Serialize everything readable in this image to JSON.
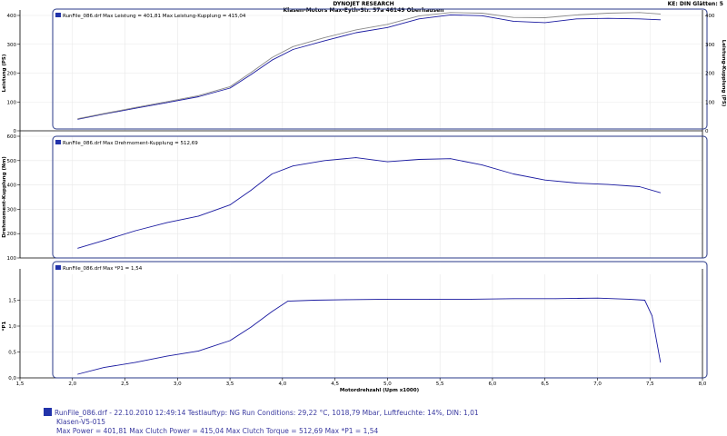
{
  "header": {
    "title": "DYNOJET RESEARCH",
    "subtitle": "Klasen-Motors  Max-Eyth-Str. 57a  46149 Oberhausen",
    "right": "KE: DIN  Glätten: 5"
  },
  "colors": {
    "series_blue": "#1a1aa0",
    "series_gray": "#8a8a8a",
    "frame_blue": "#2a3a8a",
    "grid": "#e8e8e8"
  },
  "chart_data": [
    {
      "type": "line",
      "ylabel": "Leistung (PS)",
      "ylabel_right": "Leistung-Kupplung (PS)",
      "xlim": [
        1.5,
        8.0
      ],
      "ylim": [
        0,
        400
      ],
      "yticks": [
        0,
        100,
        200,
        300,
        400
      ],
      "y_top_label": "",
      "legend": "RunFile_086.drf Max Leistung = 401,81     Max Leistung-Kupplung = 415,04",
      "series": [
        {
          "color": "#1a1aa0",
          "x": [
            2.05,
            2.3,
            2.6,
            2.9,
            3.2,
            3.5,
            3.7,
            3.9,
            4.1,
            4.4,
            4.7,
            5.0,
            5.3,
            5.6,
            5.9,
            6.2,
            6.5,
            6.8,
            7.1,
            7.4,
            7.6
          ],
          "y": [
            40,
            58,
            78,
            98,
            118,
            148,
            195,
            245,
            282,
            312,
            340,
            358,
            388,
            402,
            399,
            380,
            375,
            388,
            390,
            388,
            385
          ]
        },
        {
          "color": "#8a8a8a",
          "x": [
            2.05,
            2.3,
            2.6,
            2.9,
            3.2,
            3.5,
            3.7,
            3.9,
            4.1,
            4.4,
            4.7,
            5.0,
            5.3,
            5.6,
            5.9,
            6.2,
            6.5,
            6.8,
            7.1,
            7.4,
            7.6
          ],
          "y": [
            42,
            60,
            81,
            101,
            122,
            153,
            202,
            254,
            292,
            323,
            350,
            369,
            398,
            410,
            408,
            393,
            392,
            402,
            408,
            410,
            405
          ]
        }
      ]
    },
    {
      "type": "line",
      "ylabel": "Drehmoment-Kupplung (Nm)",
      "xlim": [
        1.5,
        8.0
      ],
      "ylim": [
        100,
        600
      ],
      "yticks": [
        100,
        200,
        300,
        400,
        500,
        600
      ],
      "legend": "RunFile_086.drf Max Drehmoment-Kupplung = 512,69",
      "series": [
        {
          "color": "#1a1aa0",
          "x": [
            2.05,
            2.3,
            2.6,
            2.9,
            3.2,
            3.5,
            3.7,
            3.9,
            4.1,
            4.4,
            4.7,
            5.0,
            5.3,
            5.6,
            5.9,
            6.2,
            6.5,
            6.8,
            7.1,
            7.4,
            7.6
          ],
          "y": [
            140,
            172,
            212,
            245,
            272,
            318,
            378,
            445,
            478,
            500,
            512,
            495,
            505,
            508,
            482,
            445,
            420,
            408,
            402,
            393,
            368
          ]
        }
      ]
    },
    {
      "type": "line",
      "ylabel": "*P1",
      "xlabel": "Motordrehzahl (Upm x1000)",
      "xlim": [
        1.5,
        8.0
      ],
      "xticks": [
        1.5,
        2.0,
        2.5,
        3.0,
        3.5,
        4.0,
        4.5,
        5.0,
        5.5,
        6.0,
        6.5,
        7.0,
        7.5,
        8.0
      ],
      "xtick_labels": [
        "1,5",
        "2,0",
        "2,5",
        "3,0",
        "3,5",
        "4,0",
        "4,5",
        "5,0",
        "5,5",
        "6,0",
        "6,5",
        "7,0",
        "7,5",
        "8,0"
      ],
      "ylim": [
        0,
        2.0
      ],
      "yticks": [
        0.0,
        0.5,
        1.0,
        1.5
      ],
      "ytick_labels": [
        "0,0",
        "0,5",
        "1,0",
        "1,5"
      ],
      "legend": "RunFile_086.drf Max *P1 = 1,54",
      "series": [
        {
          "color": "#1a1aa0",
          "x": [
            2.05,
            2.3,
            2.6,
            2.9,
            3.2,
            3.5,
            3.7,
            3.9,
            4.05,
            4.3,
            4.6,
            5.0,
            5.4,
            5.8,
            6.2,
            6.6,
            7.0,
            7.3,
            7.45,
            7.52,
            7.6
          ],
          "y": [
            0.07,
            0.2,
            0.3,
            0.42,
            0.52,
            0.72,
            0.98,
            1.28,
            1.48,
            1.5,
            1.51,
            1.52,
            1.52,
            1.52,
            1.53,
            1.53,
            1.54,
            1.52,
            1.5,
            1.2,
            0.3
          ]
        }
      ]
    }
  ],
  "footer": {
    "line1": "RunFile_086.drf - 22.10.2010 12:49:14  Testlauftyp: NG  Run Conditions: 29,22 °C, 1018,79 Mbar,  Luftfeuchte: 14%,  DIN: 1,01",
    "line2": "Klasen-V5-015",
    "line3": "Max Power = 401,81   Max Clutch Power = 415,04   Max Clutch Torque = 512,69  Max *P1 = 1,54"
  }
}
